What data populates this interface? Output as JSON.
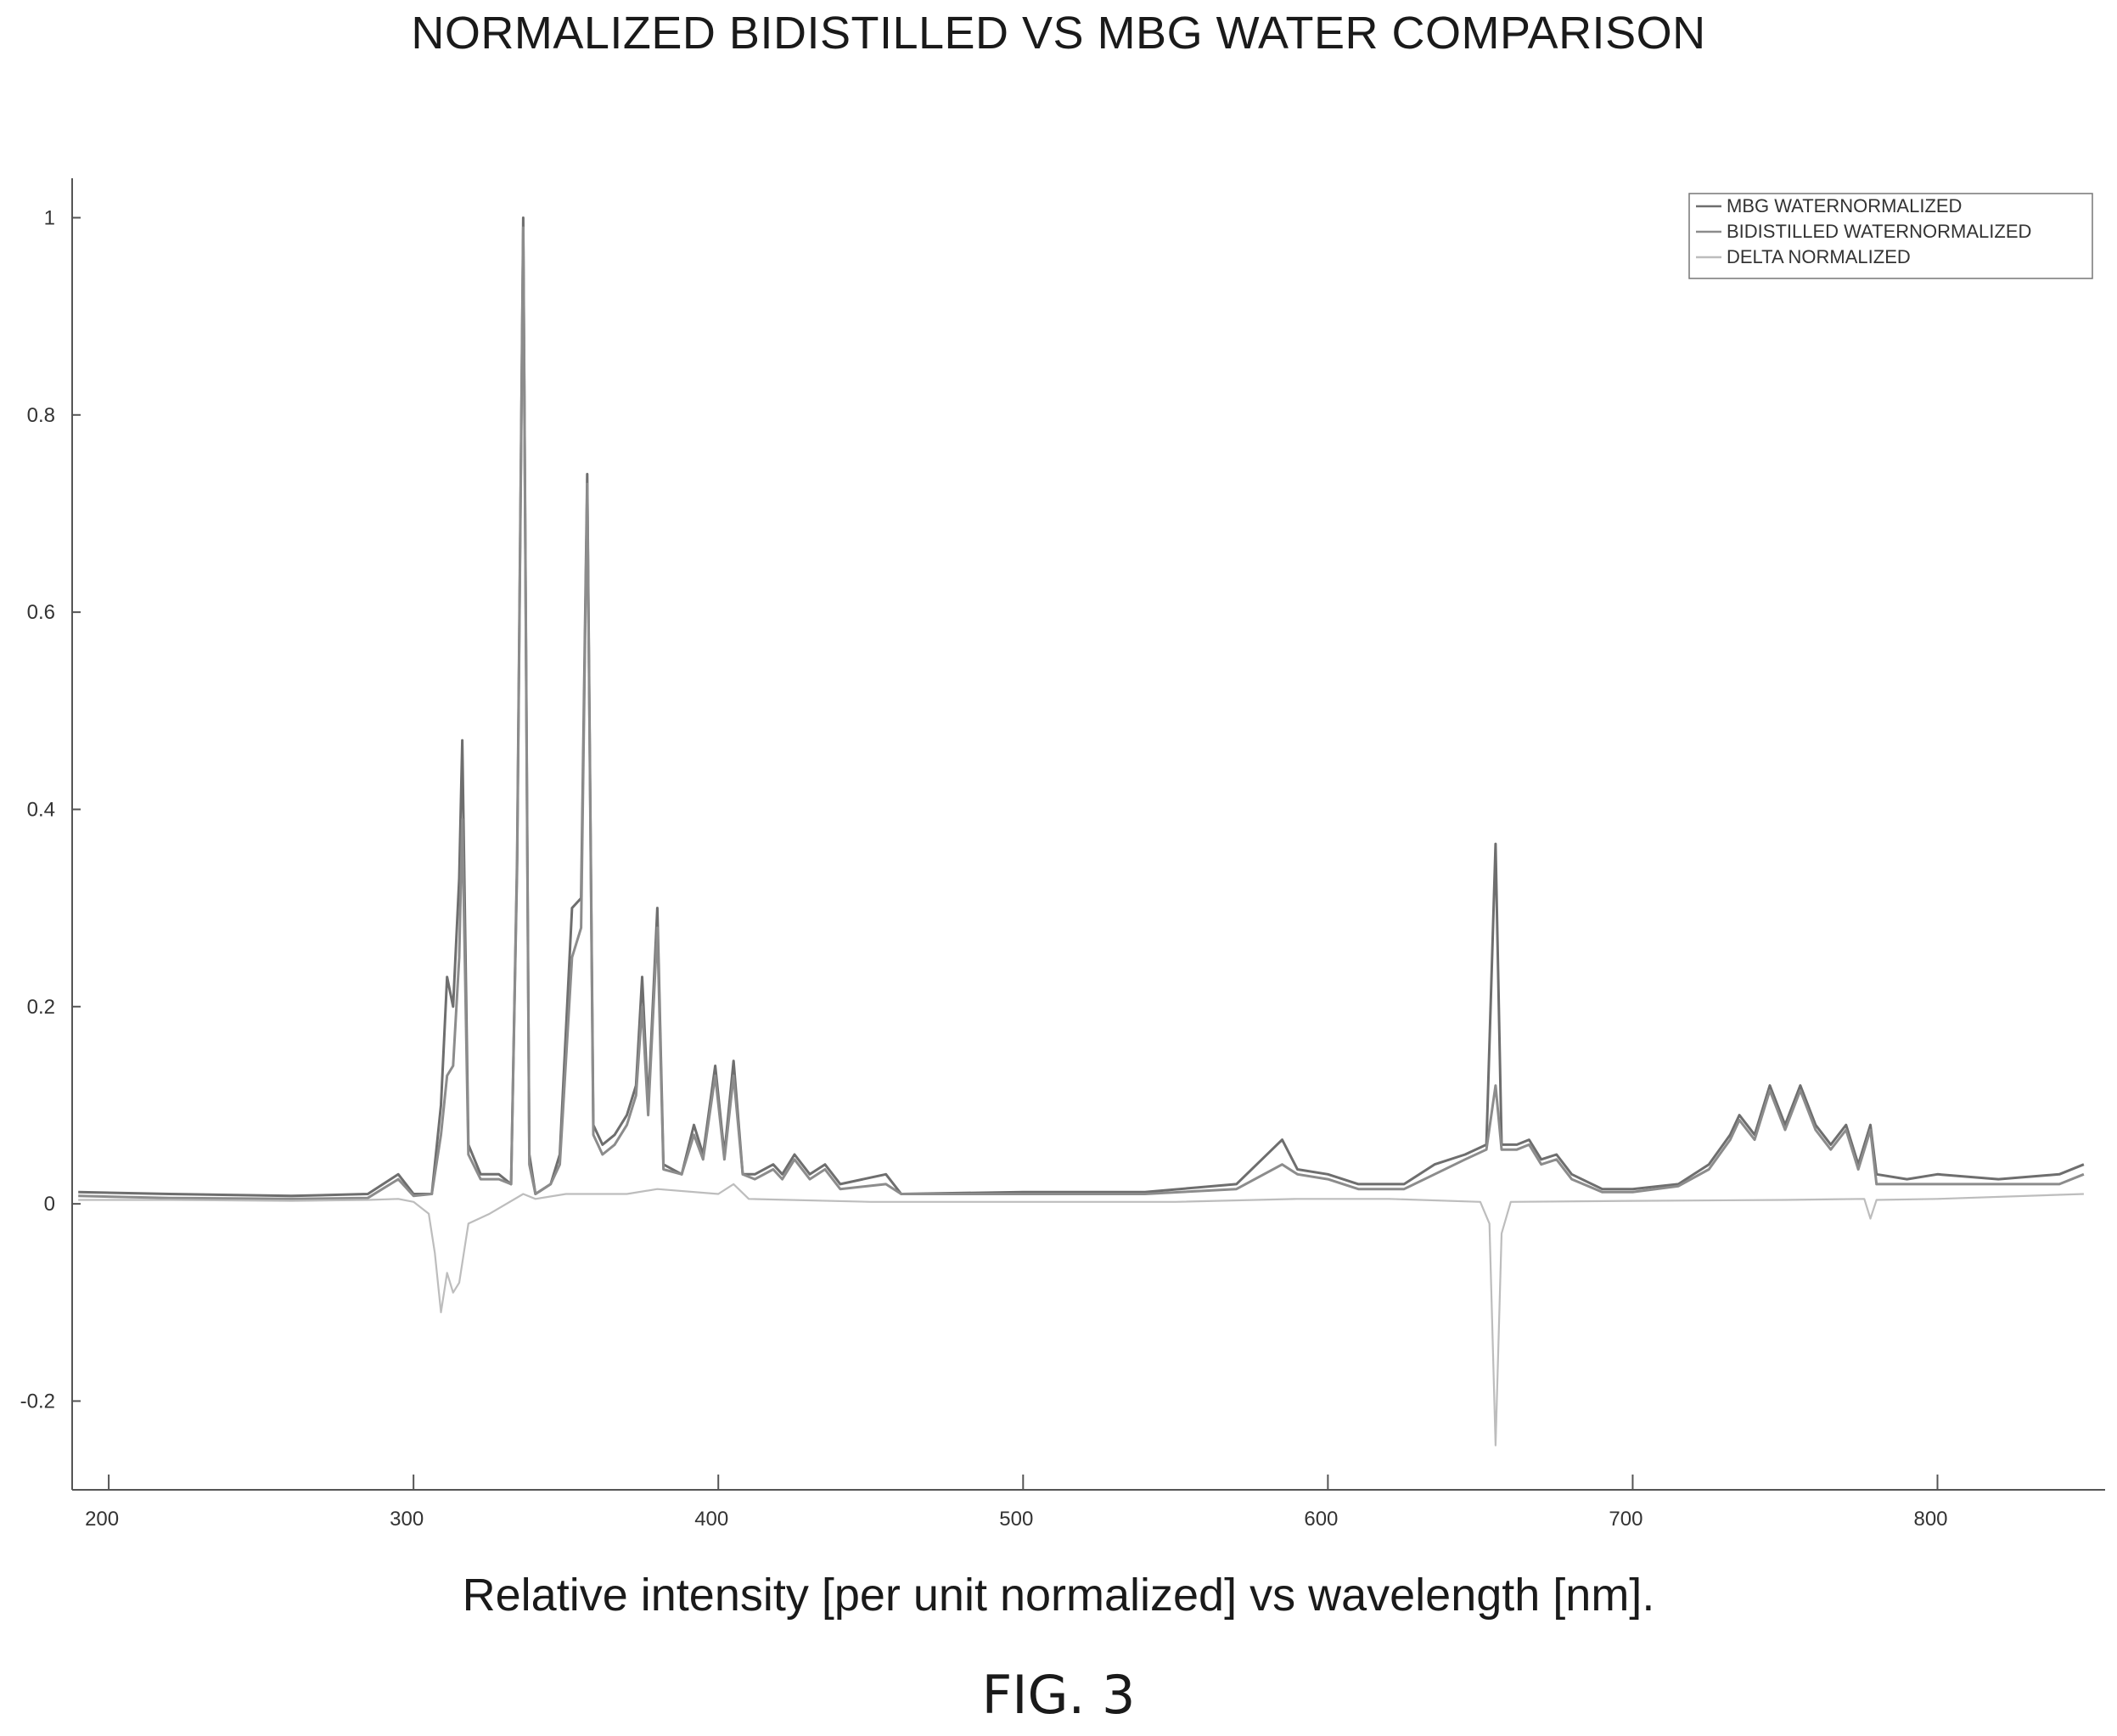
{
  "figure_label": "FIG. 3",
  "chart_data": {
    "type": "line",
    "title": "NORMALIZED BIDISTILLED VS MBG WATER COMPARISON",
    "xlabel": "Relative intensity [per unit normalized] vs wavelength [nm].",
    "ylabel": "",
    "xlim": [
      188,
      855
    ],
    "ylim": [
      -0.29,
      1.04
    ],
    "x_ticks": [
      200,
      300,
      400,
      500,
      600,
      700,
      800
    ],
    "y_ticks": [
      -0.2,
      0,
      0.2,
      0.4,
      0.6,
      0.8,
      1
    ],
    "grid": false,
    "legend_position": "top-right",
    "series": [
      {
        "name": "MBG WATERNORMALIZED",
        "color": "#6e6e6e",
        "points": [
          [
            190,
            0.012
          ],
          [
            220,
            0.01
          ],
          [
            260,
            0.008
          ],
          [
            285,
            0.01
          ],
          [
            295,
            0.03
          ],
          [
            300,
            0.01
          ],
          [
            306,
            0.01
          ],
          [
            309,
            0.1
          ],
          [
            311,
            0.23
          ],
          [
            313,
            0.2
          ],
          [
            315,
            0.33
          ],
          [
            316,
            0.47
          ],
          [
            318,
            0.06
          ],
          [
            322,
            0.03
          ],
          [
            328,
            0.03
          ],
          [
            332,
            0.02
          ],
          [
            334,
            0.35
          ],
          [
            336,
            1.0
          ],
          [
            338,
            0.05
          ],
          [
            340,
            0.01
          ],
          [
            345,
            0.02
          ],
          [
            348,
            0.05
          ],
          [
            352,
            0.3
          ],
          [
            355,
            0.31
          ],
          [
            357,
            0.74
          ],
          [
            359,
            0.08
          ],
          [
            362,
            0.06
          ],
          [
            366,
            0.07
          ],
          [
            370,
            0.09
          ],
          [
            373,
            0.12
          ],
          [
            375,
            0.23
          ],
          [
            377,
            0.1
          ],
          [
            380,
            0.3
          ],
          [
            382,
            0.04
          ],
          [
            388,
            0.03
          ],
          [
            392,
            0.08
          ],
          [
            395,
            0.05
          ],
          [
            399,
            0.14
          ],
          [
            402,
            0.05
          ],
          [
            405,
            0.145
          ],
          [
            408,
            0.03
          ],
          [
            412,
            0.03
          ],
          [
            418,
            0.04
          ],
          [
            421,
            0.03
          ],
          [
            425,
            0.05
          ],
          [
            430,
            0.03
          ],
          [
            435,
            0.04
          ],
          [
            440,
            0.02
          ],
          [
            455,
            0.03
          ],
          [
            460,
            0.01
          ],
          [
            500,
            0.012
          ],
          [
            540,
            0.012
          ],
          [
            570,
            0.02
          ],
          [
            585,
            0.065
          ],
          [
            590,
            0.035
          ],
          [
            600,
            0.03
          ],
          [
            610,
            0.02
          ],
          [
            625,
            0.02
          ],
          [
            635,
            0.04
          ],
          [
            645,
            0.05
          ],
          [
            652,
            0.06
          ],
          [
            655,
            0.365
          ],
          [
            657,
            0.06
          ],
          [
            662,
            0.06
          ],
          [
            666,
            0.065
          ],
          [
            670,
            0.045
          ],
          [
            675,
            0.05
          ],
          [
            680,
            0.03
          ],
          [
            690,
            0.015
          ],
          [
            700,
            0.015
          ],
          [
            715,
            0.02
          ],
          [
            725,
            0.04
          ],
          [
            732,
            0.07
          ],
          [
            735,
            0.09
          ],
          [
            740,
            0.07
          ],
          [
            745,
            0.12
          ],
          [
            750,
            0.08
          ],
          [
            755,
            0.12
          ],
          [
            760,
            0.08
          ],
          [
            765,
            0.06
          ],
          [
            770,
            0.08
          ],
          [
            774,
            0.04
          ],
          [
            778,
            0.08
          ],
          [
            780,
            0.03
          ],
          [
            790,
            0.025
          ],
          [
            800,
            0.03
          ],
          [
            820,
            0.025
          ],
          [
            840,
            0.03
          ],
          [
            848,
            0.04
          ]
        ]
      },
      {
        "name": "BIDISTILLED WATERNORMALIZED",
        "color": "#8c8c8c",
        "points": [
          [
            190,
            0.008
          ],
          [
            220,
            0.006
          ],
          [
            260,
            0.005
          ],
          [
            285,
            0.006
          ],
          [
            295,
            0.025
          ],
          [
            300,
            0.008
          ],
          [
            306,
            0.01
          ],
          [
            309,
            0.07
          ],
          [
            311,
            0.13
          ],
          [
            313,
            0.14
          ],
          [
            315,
            0.25
          ],
          [
            316,
            0.39
          ],
          [
            318,
            0.05
          ],
          [
            322,
            0.025
          ],
          [
            328,
            0.025
          ],
          [
            332,
            0.02
          ],
          [
            334,
            0.34
          ],
          [
            336,
            0.99
          ],
          [
            338,
            0.04
          ],
          [
            340,
            0.01
          ],
          [
            345,
            0.02
          ],
          [
            348,
            0.04
          ],
          [
            352,
            0.25
          ],
          [
            355,
            0.28
          ],
          [
            357,
            0.73
          ],
          [
            359,
            0.07
          ],
          [
            362,
            0.05
          ],
          [
            366,
            0.06
          ],
          [
            370,
            0.08
          ],
          [
            373,
            0.11
          ],
          [
            375,
            0.2
          ],
          [
            377,
            0.09
          ],
          [
            380,
            0.28
          ],
          [
            382,
            0.035
          ],
          [
            388,
            0.03
          ],
          [
            392,
            0.07
          ],
          [
            395,
            0.045
          ],
          [
            399,
            0.13
          ],
          [
            402,
            0.045
          ],
          [
            405,
            0.13
          ],
          [
            408,
            0.03
          ],
          [
            412,
            0.025
          ],
          [
            418,
            0.035
          ],
          [
            421,
            0.025
          ],
          [
            425,
            0.045
          ],
          [
            430,
            0.025
          ],
          [
            435,
            0.035
          ],
          [
            440,
            0.015
          ],
          [
            455,
            0.02
          ],
          [
            460,
            0.01
          ],
          [
            500,
            0.01
          ],
          [
            540,
            0.01
          ],
          [
            570,
            0.015
          ],
          [
            585,
            0.04
          ],
          [
            590,
            0.03
          ],
          [
            600,
            0.025
          ],
          [
            610,
            0.015
          ],
          [
            625,
            0.015
          ],
          [
            635,
            0.03
          ],
          [
            645,
            0.045
          ],
          [
            652,
            0.055
          ],
          [
            655,
            0.12
          ],
          [
            657,
            0.055
          ],
          [
            662,
            0.055
          ],
          [
            666,
            0.06
          ],
          [
            670,
            0.04
          ],
          [
            675,
            0.045
          ],
          [
            680,
            0.025
          ],
          [
            690,
            0.012
          ],
          [
            700,
            0.012
          ],
          [
            715,
            0.018
          ],
          [
            725,
            0.035
          ],
          [
            732,
            0.065
          ],
          [
            735,
            0.085
          ],
          [
            740,
            0.065
          ],
          [
            745,
            0.115
          ],
          [
            750,
            0.075
          ],
          [
            755,
            0.115
          ],
          [
            760,
            0.075
          ],
          [
            765,
            0.055
          ],
          [
            770,
            0.075
          ],
          [
            774,
            0.035
          ],
          [
            778,
            0.075
          ],
          [
            780,
            0.02
          ],
          [
            790,
            0.02
          ],
          [
            800,
            0.02
          ],
          [
            820,
            0.02
          ],
          [
            840,
            0.02
          ],
          [
            848,
            0.03
          ]
        ]
      },
      {
        "name": "DELTA NORMALIZED",
        "color": "#bdbdbd",
        "points": [
          [
            190,
            0.004
          ],
          [
            220,
            0.004
          ],
          [
            260,
            0.003
          ],
          [
            285,
            0.004
          ],
          [
            295,
            0.005
          ],
          [
            300,
            0.002
          ],
          [
            305,
            -0.01
          ],
          [
            307,
            -0.05
          ],
          [
            309,
            -0.11
          ],
          [
            311,
            -0.07
          ],
          [
            313,
            -0.09
          ],
          [
            315,
            -0.08
          ],
          [
            318,
            -0.02
          ],
          [
            325,
            -0.01
          ],
          [
            336,
            0.01
          ],
          [
            340,
            0.005
          ],
          [
            350,
            0.01
          ],
          [
            357,
            0.01
          ],
          [
            370,
            0.01
          ],
          [
            380,
            0.015
          ],
          [
            400,
            0.01
          ],
          [
            405,
            0.02
          ],
          [
            410,
            0.005
          ],
          [
            450,
            0.002
          ],
          [
            500,
            0.002
          ],
          [
            550,
            0.002
          ],
          [
            590,
            0.005
          ],
          [
            620,
            0.005
          ],
          [
            650,
            0.002
          ],
          [
            653,
            -0.02
          ],
          [
            655,
            -0.245
          ],
          [
            657,
            -0.03
          ],
          [
            660,
            0.002
          ],
          [
            700,
            0.003
          ],
          [
            750,
            0.004
          ],
          [
            776,
            0.005
          ],
          [
            778,
            -0.015
          ],
          [
            780,
            0.004
          ],
          [
            800,
            0.005
          ],
          [
            848,
            0.01
          ]
        ]
      }
    ]
  }
}
